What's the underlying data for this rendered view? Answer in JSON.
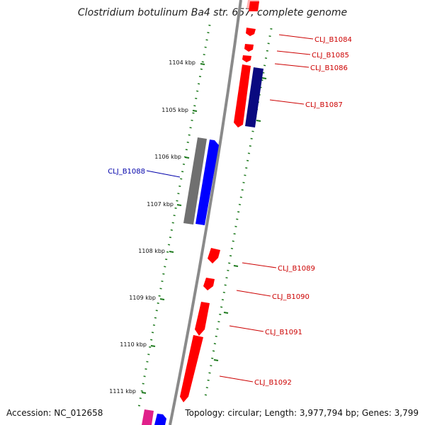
{
  "title": "Clostridium botulinum Ba4 str. 657, complete genome",
  "footer": {
    "accession": "Accession: NC_012658",
    "summary": "Topology: circular; Length: 3,977,794 bp; Genes: 3,799"
  },
  "colors": {
    "backbone": "#8a8a8a",
    "tick": "#1e7a1e",
    "forward_gene": "#ff0000",
    "reverse_gene": "#0000ff",
    "label_forward": "#cc0000",
    "label_reverse": "#0000aa"
  },
  "ticks": [
    {
      "kbp": 1104,
      "label": "1104 kbp"
    },
    {
      "kbp": 1105,
      "label": "1105 kbp"
    },
    {
      "kbp": 1106,
      "label": "1106 kbp"
    },
    {
      "kbp": 1107,
      "label": "1107 kbp"
    },
    {
      "kbp": 1108,
      "label": "1108 kbp"
    },
    {
      "kbp": 1109,
      "label": "1109 kbp"
    },
    {
      "kbp": 1110,
      "label": "1110 kbp"
    },
    {
      "kbp": 1111,
      "label": "1111 kbp"
    }
  ],
  "gene_labels": [
    {
      "text": "CLJ_B1084",
      "color": "#cc0000"
    },
    {
      "text": "CLJ_B1085",
      "color": "#cc0000"
    },
    {
      "text": "CLJ_B1086",
      "color": "#cc0000"
    },
    {
      "text": "CLJ_B1087",
      "color": "#cc0000"
    },
    {
      "text": "CLJ_B1088",
      "color": "#0000aa"
    },
    {
      "text": "CLJ_B1089",
      "color": "#cc0000"
    },
    {
      "text": "CLJ_B1090",
      "color": "#cc0000"
    },
    {
      "text": "CLJ_B1091",
      "color": "#cc0000"
    },
    {
      "text": "CLJ_B1092",
      "color": "#cc0000"
    }
  ]
}
